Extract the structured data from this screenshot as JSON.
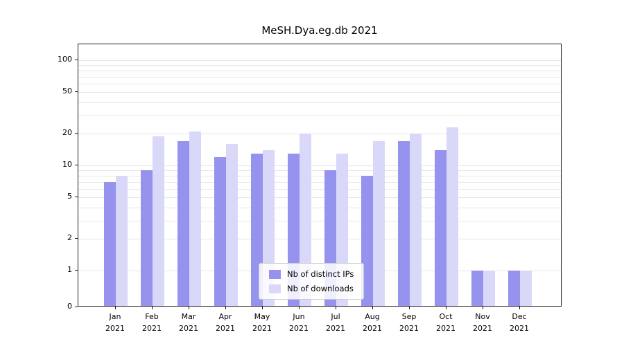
{
  "title": "MeSH.Dya.eg.db 2021",
  "chart_data": {
    "type": "bar",
    "title": "MeSH.Dya.eg.db 2021",
    "categories": [
      {
        "month": "Jan",
        "year": "2021"
      },
      {
        "month": "Feb",
        "year": "2021"
      },
      {
        "month": "Mar",
        "year": "2021"
      },
      {
        "month": "Apr",
        "year": "2021"
      },
      {
        "month": "May",
        "year": "2021"
      },
      {
        "month": "Jun",
        "year": "2021"
      },
      {
        "month": "Jul",
        "year": "2021"
      },
      {
        "month": "Aug",
        "year": "2021"
      },
      {
        "month": "Sep",
        "year": "2021"
      },
      {
        "month": "Oct",
        "year": "2021"
      },
      {
        "month": "Nov",
        "year": "2021"
      },
      {
        "month": "Dec",
        "year": "2021"
      }
    ],
    "series": [
      {
        "name": "Nb of distinct IPs",
        "color": "#9593ee",
        "values": [
          7,
          9,
          17,
          12,
          13,
          13,
          9,
          8,
          17,
          14,
          1,
          1
        ]
      },
      {
        "name": "Nb of downloads",
        "color": "#d9d8f8",
        "values": [
          8,
          19,
          21,
          16,
          14,
          20,
          13,
          17,
          20,
          23,
          1,
          1
        ]
      }
    ],
    "y_scale": "symlog",
    "y_ticks": [
      0,
      1,
      2,
      5,
      10,
      20,
      50,
      100
    ],
    "y_minor_gridlines": [
      1,
      2,
      3,
      4,
      5,
      6,
      7,
      8,
      9,
      10,
      20,
      30,
      40,
      50,
      60,
      70,
      80,
      90,
      100
    ],
    "ylim": [
      0,
      100
    ],
    "grid": true,
    "legend_position": "bottom-center-inside"
  },
  "colors": {
    "grid": "#e7e7e7",
    "axis": "#1a1a1a",
    "background": "#ffffff"
  }
}
